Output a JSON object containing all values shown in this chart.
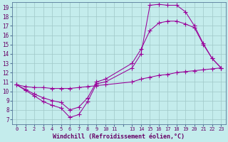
{
  "xlabel": "Windchill (Refroidissement éolien,°C)",
  "background_color": "#c4ecec",
  "grid_color": "#a0c8c8",
  "line_color": "#990099",
  "xlim": [
    -0.5,
    23.5
  ],
  "ylim": [
    6.5,
    19.5
  ],
  "yticks": [
    7,
    8,
    9,
    10,
    11,
    12,
    13,
    14,
    15,
    16,
    17,
    18,
    19
  ],
  "line1_x": [
    0,
    1,
    2,
    3,
    4,
    5,
    6,
    7,
    8,
    9,
    10,
    13,
    14,
    15,
    16,
    17,
    18,
    19,
    20,
    21,
    22,
    23
  ],
  "line1_y": [
    10.7,
    10.1,
    9.5,
    8.9,
    8.5,
    8.2,
    7.2,
    7.5,
    8.9,
    10.8,
    11.0,
    12.5,
    14.0,
    19.2,
    19.3,
    19.2,
    19.2,
    18.5,
    17.0,
    15.1,
    13.5,
    12.5
  ],
  "line2_x": [
    0,
    1,
    2,
    3,
    4,
    5,
    6,
    7,
    8,
    9,
    10,
    13,
    14,
    15,
    16,
    17,
    18,
    19,
    20,
    21,
    22,
    23
  ],
  "line2_y": [
    10.7,
    10.2,
    9.7,
    9.3,
    9.0,
    8.8,
    8.0,
    8.3,
    9.3,
    11.0,
    11.3,
    13.0,
    14.5,
    16.5,
    17.3,
    17.5,
    17.5,
    17.2,
    16.8,
    15.0,
    13.5,
    12.5
  ],
  "line3_x": [
    0,
    1,
    2,
    3,
    4,
    5,
    6,
    7,
    8,
    9,
    10,
    13,
    14,
    15,
    16,
    17,
    18,
    19,
    20,
    21,
    22,
    23
  ],
  "line3_y": [
    10.7,
    10.5,
    10.4,
    10.4,
    10.3,
    10.3,
    10.3,
    10.4,
    10.5,
    10.6,
    10.7,
    11.0,
    11.3,
    11.5,
    11.7,
    11.8,
    12.0,
    12.1,
    12.2,
    12.3,
    12.4,
    12.5
  ]
}
